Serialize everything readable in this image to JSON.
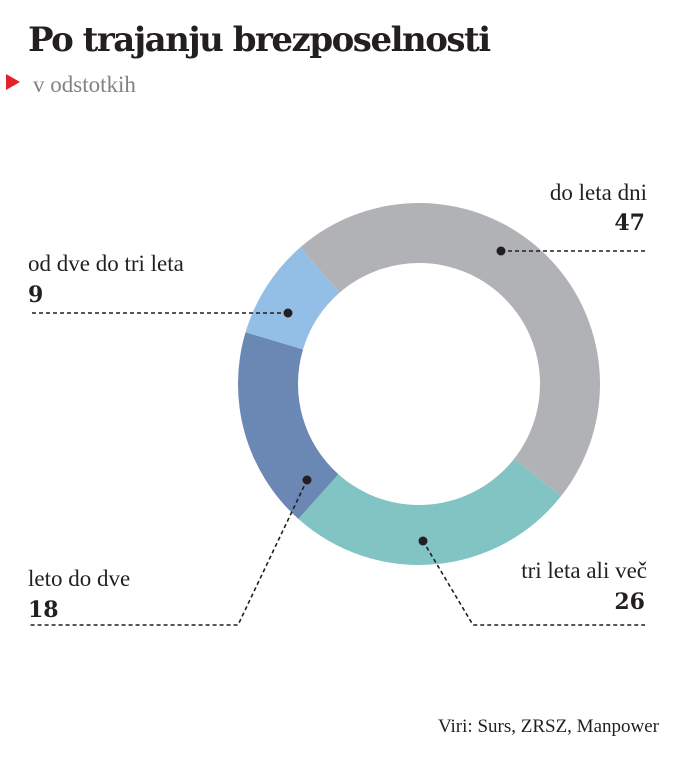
{
  "chart_data": {
    "type": "pie",
    "donut": true,
    "title": "Po trajanju brezposelnosti",
    "subtitle": "v odstotkih",
    "slices": [
      {
        "label": "do leta dni",
        "value": 47,
        "color": "#b1b2b5"
      },
      {
        "label": "tri leta ali več",
        "value": 26,
        "color": "#82c4c3"
      },
      {
        "label": "leto do dve",
        "value": 18,
        "color": "#6a88b3"
      },
      {
        "label": "od dve do tri leta",
        "value": 9,
        "color": "#93bfe7"
      }
    ],
    "source": "Viri: Surs, ZRSZ, Manpower"
  },
  "accent_color": "#e5202a"
}
